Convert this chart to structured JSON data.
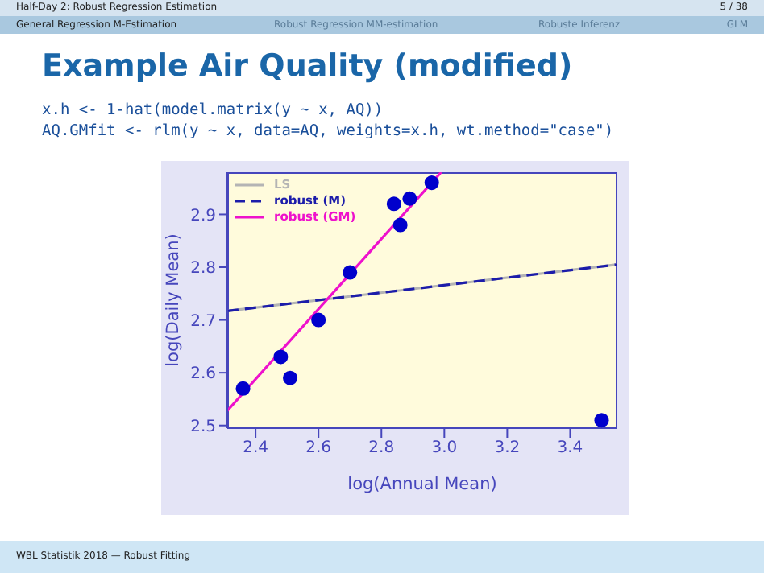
{
  "chart_data": {
    "type": "scatter",
    "title": "Example Air Quality (modified)",
    "annotations": [
      "Half-Day 2: Robust Regression Estimation",
      "5 / 38",
      "General Regression M-Estimation",
      "Robust Regression MM-estimation",
      "Robuste Inferenz",
      "GLM",
      "x.h <- 1-hat(model.matrix(y ∼ x, AQ))",
      "AQ.GMfit <- rlm(y ∼ x, data=AQ, weights=x.h, wt.method=\"case\")",
      "WBL Statistik 2018 — Robust Fitting"
    ],
    "xlabel": "log(Annual Mean)",
    "ylabel": "log(Daily Mean)",
    "x": [
      2.36,
      2.48,
      2.51,
      2.6,
      2.7,
      2.84,
      2.86,
      2.89,
      2.96,
      3.5
    ],
    "series": [
      {
        "color": "#0000cc",
        "marker": "circle",
        "values": [
          2.57,
          2.63,
          2.59,
          2.7,
          2.79,
          2.92,
          2.88,
          2.93,
          2.96,
          2.51
        ]
      },
      {
        "name": "LS",
        "type": "line",
        "color": "#b4b4b4",
        "x": [
          2.31,
          3.55
        ],
        "values": [
          2.717,
          2.805
        ]
      },
      {
        "name": "robust (M)",
        "type": "line",
        "line_style": "dashed",
        "color": "#1c1caa",
        "x": [
          2.31,
          3.55
        ],
        "values": [
          2.717,
          2.805
        ]
      },
      {
        "name": "robust (GM)",
        "type": "line",
        "color": "#ee11cc",
        "x": [
          2.31,
          2.99
        ],
        "values": [
          2.528,
          2.98
        ]
      }
    ],
    "legend": "top left",
    "xlim": [
      2.31,
      3.55
    ],
    "xticks": [
      2.4,
      2.6,
      2.8,
      {
        "value": 3,
        "label": "3.0"
      },
      3.2,
      3.4
    ],
    "ylim": [
      2.495,
      2.98
    ],
    "yticks": [
      2.5,
      2.6,
      2.7,
      2.8,
      2.9
    ]
  }
}
